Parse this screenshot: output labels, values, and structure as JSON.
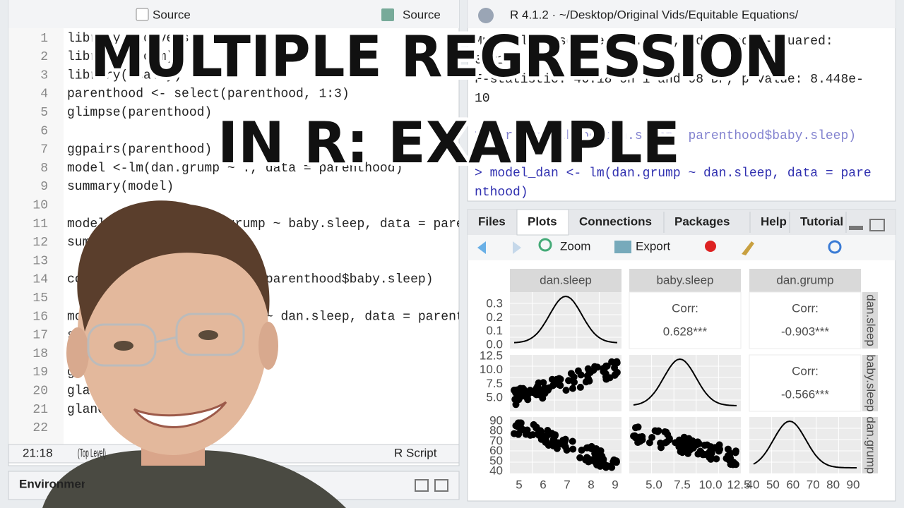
{
  "title": {
    "line1": "MULTIPLE REGRESSION",
    "line2": "IN R: EXAMPLE"
  },
  "editor": {
    "toolbar": {
      "source_on_save": "Source",
      "source": "Source"
    },
    "lines": [
      {
        "number": "1",
        "code": "library(tidyverse)"
      },
      {
        "number": "2",
        "code": "library(broom)"
      },
      {
        "number": "3",
        "code": "library(GGally)"
      },
      {
        "number": "4",
        "code": "parenthood <- select(parenthood, 1:3)"
      },
      {
        "number": "5",
        "code": "glimpse(parenthood)"
      },
      {
        "number": "6"
      },
      {
        "number": "7",
        "code": "ggpairs(parenthood)"
      },
      {
        "number": "8",
        "code": "model <-lm(dan.grump ~ ., data = parenthood)"
      },
      {
        "number": "9",
        "code": "summary(model)"
      },
      {
        "number": "10"
      },
      {
        "number": "11",
        "code": "model_baby <- lm(dan.grump ~ baby.sleep, data = parenthood)"
      },
      {
        "number": "12",
        "code": "summary(model_baby)"
      },
      {
        "number": "13"
      },
      {
        "number": "14",
        "code": "cor(parenthood$dan.sleep, parenthood$baby.sleep)"
      },
      {
        "number": "15"
      },
      {
        "number": "16",
        "code": "model_dan <- lm(dan.grump ~ dan.sleep, data = parenthood)"
      },
      {
        "number": "17",
        "code": "summary(model_dan)"
      },
      {
        "number": "18"
      },
      {
        "number": "19",
        "code": "glance(model)"
      },
      {
        "number": "20",
        "code": "glance(model_baby)"
      },
      {
        "number": "21",
        "code": "glance(model_dan)"
      },
      {
        "number": "22"
      }
    ],
    "status": {
      "position": "21:18",
      "scope": "(Top Level)",
      "file_type": "R Script"
    }
  },
  "environment": "Environment",
  "console": {
    "header": "R 4.1.2 · ~/Desktop/Original Vids/Equitable Equations/",
    "output": [
      "Multiple R-squared:  0.3203,\tAdjusted R-squared:",
      "0.3134",
      "F-statistic: 46.18 on 1 and 98 DF,  p-value: 8.448e-",
      "10"
    ],
    "input": [
      "> cor(parenthood$dan.sleep, parenthood$baby.sleep)",
      "> model_dan <- lm(dan.grump ~ dan.sleep, data = pare",
      "nthood)"
    ]
  },
  "viewer": {
    "tabs": [
      "Files",
      "Plots",
      "Connections",
      "Packages",
      "Help",
      "Tutorial"
    ],
    "toolbar": {
      "zoom": "Zoom",
      "export": "Export"
    },
    "plot": {
      "variables": [
        "dan.sleep",
        "baby.sleep",
        "dan.grump"
      ],
      "correlations": [
        {
          "label": "Corr:",
          "value": "0.628***"
        },
        {
          "label": "Corr:",
          "value": "-0.903***"
        },
        {
          "label": "Corr:",
          "value": "-0.566***"
        }
      ],
      "y_ticks": [
        [
          "0.3",
          "0.2",
          "0.1",
          "0.0"
        ],
        [
          "12.5",
          "10.0",
          "7.5",
          "5.0"
        ],
        [
          "90",
          "80",
          "70",
          "60",
          "50",
          "40"
        ]
      ],
      "x_ticks": [
        [
          "5",
          "6",
          "7",
          "8",
          "9"
        ],
        [
          "5.0",
          "7.5",
          "10.0",
          "12.5"
        ],
        [
          "40",
          "50",
          "60",
          "70",
          "80",
          "90"
        ]
      ]
    }
  }
}
